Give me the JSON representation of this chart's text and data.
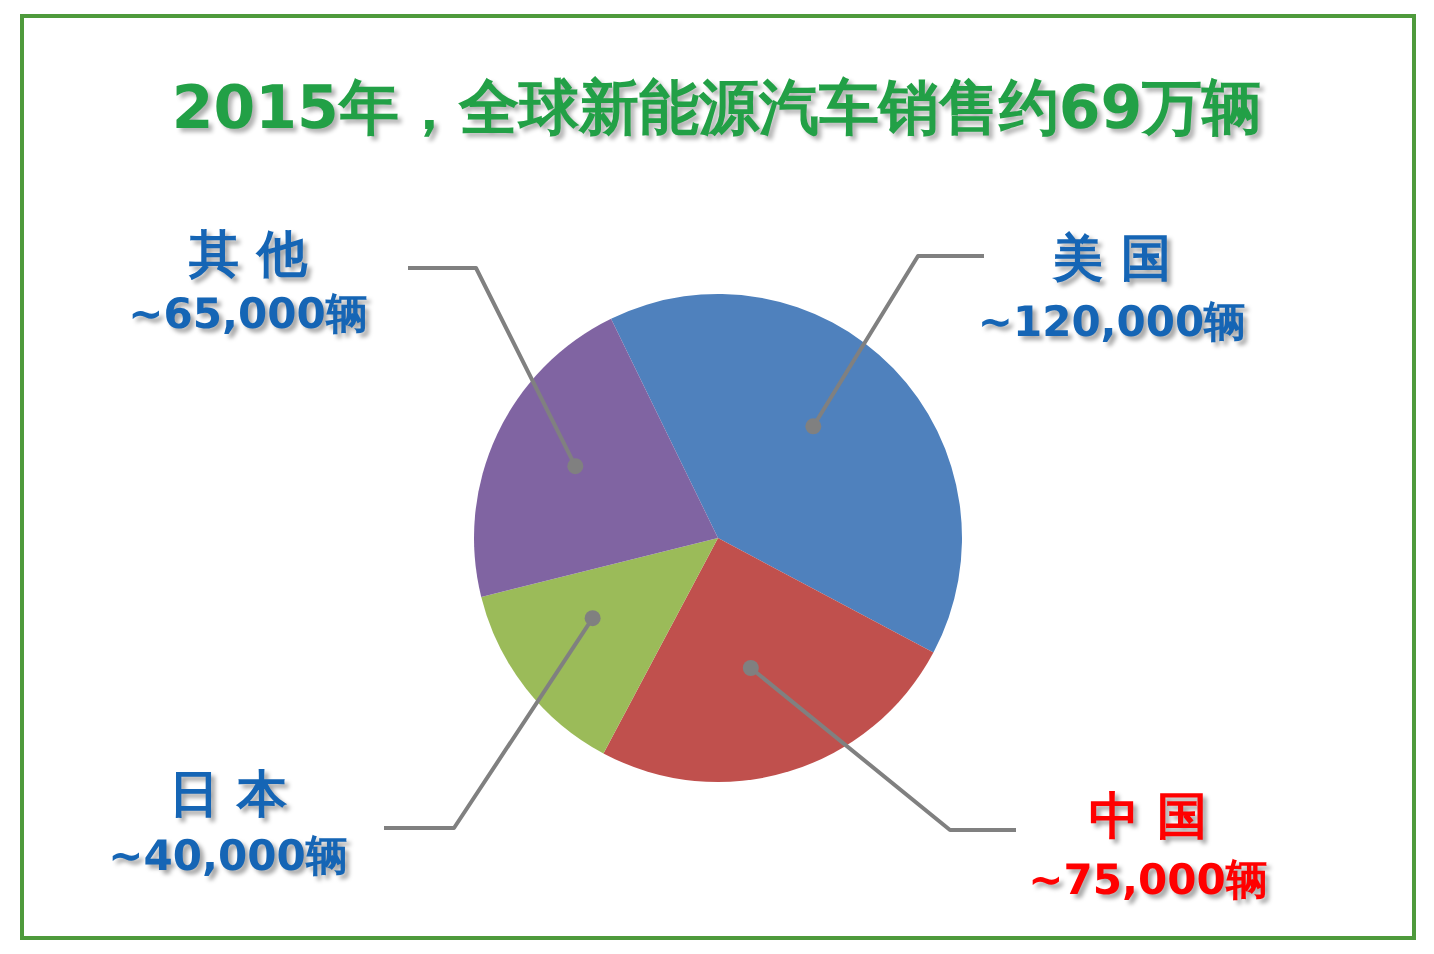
{
  "chart_data": {
    "type": "pie",
    "title": "2015年，全球新能源汽车销售约69万辆",
    "categories": [
      "美 国",
      "中 国",
      "日 本",
      "其 他"
    ],
    "values": [
      120000,
      75000,
      40000,
      65000
    ],
    "colors": [
      "#4f81bd",
      "#c0504d",
      "#9bbb59",
      "#8064a2"
    ],
    "value_labels": [
      "~120,000辆",
      "~75,000辆",
      "~40,000辆",
      "~65,000辆"
    ]
  }
}
